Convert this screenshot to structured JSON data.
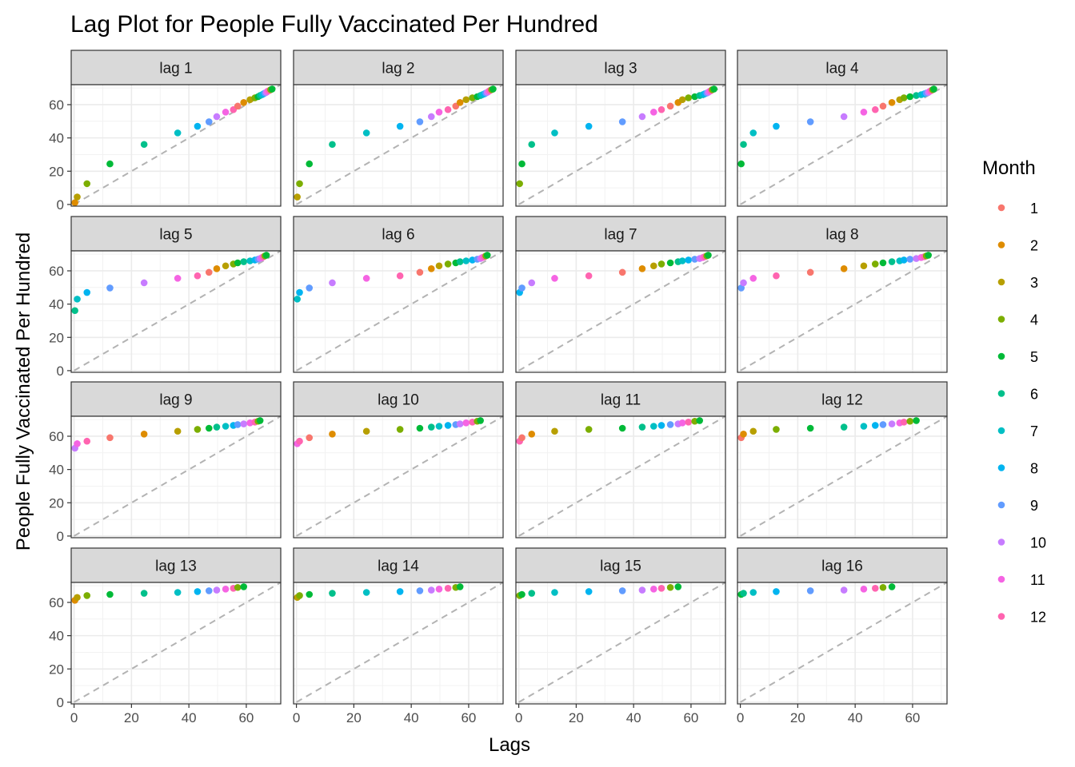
{
  "chart_data": {
    "type": "scatter",
    "title": "Lag Plot for People Fully Vaccinated Per Hundred",
    "xlabel": "Lags",
    "ylabel": "People Fully Vaccinated Per Hundred",
    "xlim": [
      -1,
      72
    ],
    "ylim": [
      -1,
      72
    ],
    "xticks": [
      0,
      20,
      40,
      60
    ],
    "yticks": [
      0,
      20,
      40,
      60
    ],
    "grid": true,
    "reference_line": "dashed y = x",
    "legend": {
      "title": "Month",
      "placement": "right",
      "entries": [
        {
          "label": "1",
          "color": "#F8766D"
        },
        {
          "label": "2",
          "color": "#DE8C00"
        },
        {
          "label": "3",
          "color": "#B79F00"
        },
        {
          "label": "4",
          "color": "#7CAE00"
        },
        {
          "label": "5",
          "color": "#00BA38"
        },
        {
          "label": "6",
          "color": "#00C08B"
        },
        {
          "label": "7",
          "color": "#00BFC4"
        },
        {
          "label": "8",
          "color": "#00B4F0"
        },
        {
          "label": "9",
          "color": "#619CFF"
        },
        {
          "label": "10",
          "color": "#C77CFF"
        },
        {
          "label": "11",
          "color": "#F564E3"
        },
        {
          "label": "12",
          "color": "#FF64B0"
        }
      ]
    },
    "series": [
      {
        "values": [
          0.3,
          1.1,
          4.5,
          12.5,
          24.4,
          36.1,
          43.0,
          47.0,
          49.7,
          52.8,
          55.5,
          57.0,
          59.1,
          61.3,
          63.0,
          64.1,
          64.8,
          65.5,
          66.0,
          66.5,
          67.0,
          67.4,
          68.0,
          68.5,
          69.0,
          69.4
        ],
        "months": [
          1,
          2,
          3,
          4,
          5,
          6,
          7,
          8,
          9,
          10,
          11,
          12,
          1,
          2,
          3,
          4,
          5,
          6,
          7,
          8,
          9,
          10,
          11,
          12,
          4,
          5
        ]
      }
    ],
    "facets": [
      {
        "label": "lag 1",
        "lag": 1
      },
      {
        "label": "lag 2",
        "lag": 2
      },
      {
        "label": "lag 3",
        "lag": 3
      },
      {
        "label": "lag 4",
        "lag": 4
      },
      {
        "label": "lag 5",
        "lag": 5
      },
      {
        "label": "lag 6",
        "lag": 6
      },
      {
        "label": "lag 7",
        "lag": 7
      },
      {
        "label": "lag 8",
        "lag": 8
      },
      {
        "label": "lag 9",
        "lag": 9
      },
      {
        "label": "lag 10",
        "lag": 10
      },
      {
        "label": "lag 11",
        "lag": 11
      },
      {
        "label": "lag 12",
        "lag": 12
      },
      {
        "label": "lag 13",
        "lag": 13
      },
      {
        "label": "lag 14",
        "lag": 14
      },
      {
        "label": "lag 15",
        "lag": 15
      },
      {
        "label": "lag 16",
        "lag": 16
      }
    ]
  }
}
